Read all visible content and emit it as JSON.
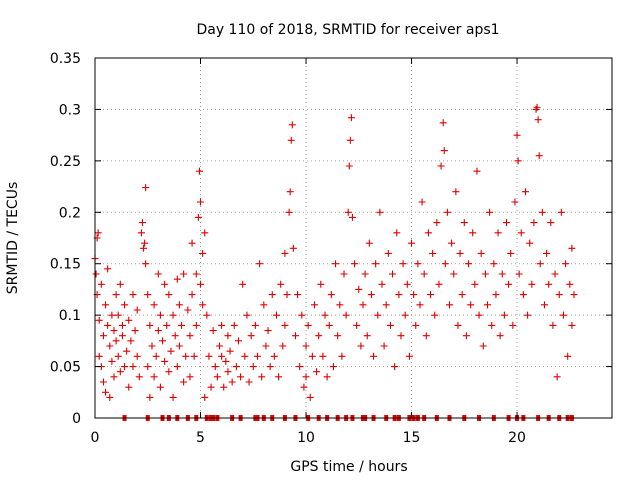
{
  "chart_data": {
    "type": "scatter",
    "title": "Day 110 of 2018, SRMTID for receiver aps1",
    "xlabel": "GPS time / hours",
    "ylabel": "SRMTID / TECUs",
    "xlim": [
      0,
      24.5
    ],
    "ylim": [
      0,
      0.35
    ],
    "xticks": [
      0,
      5,
      10,
      15,
      20
    ],
    "yticks": [
      0,
      0.05,
      0.1,
      0.15,
      0.2,
      0.25,
      0.3,
      0.35
    ],
    "xtick_labels": [
      "0",
      "5",
      "10",
      "15",
      "20"
    ],
    "ytick_labels": [
      "0",
      "0.05",
      "0.1",
      "0.15",
      "0.2",
      "0.25",
      "0.3",
      "0.35"
    ],
    "grid": true,
    "marker": "plus",
    "color": "#e00000",
    "series": [
      {
        "name": "SRMTID",
        "points": [
          [
            0.0,
            0.155
          ],
          [
            0.05,
            0.14
          ],
          [
            0.1,
            0.12
          ],
          [
            0.1,
            0.175
          ],
          [
            0.15,
            0.18
          ],
          [
            0.2,
            0.095
          ],
          [
            0.2,
            0.06
          ],
          [
            0.3,
            0.13
          ],
          [
            0.3,
            0.05
          ],
          [
            0.4,
            0.08
          ],
          [
            0.4,
            0.035
          ],
          [
            0.5,
            0.11
          ],
          [
            0.5,
            0.025
          ],
          [
            0.6,
            0.09
          ],
          [
            0.6,
            0.145
          ],
          [
            0.7,
            0.07
          ],
          [
            0.7,
            0.02
          ],
          [
            0.8,
            0.1
          ],
          [
            0.8,
            0.055
          ],
          [
            0.9,
            0.085
          ],
          [
            0.9,
            0.04
          ],
          [
            1.0,
            0.12
          ],
          [
            1.0,
            0.075
          ],
          [
            1.1,
            0.06
          ],
          [
            1.1,
            0.1
          ],
          [
            1.2,
            0.13
          ],
          [
            1.2,
            0.045
          ],
          [
            1.3,
            0.09
          ],
          [
            1.3,
            0.08
          ],
          [
            1.4,
            0.11
          ],
          [
            1.4,
            0.05
          ],
          [
            1.5,
            0.065
          ],
          [
            1.6,
            0.095
          ],
          [
            1.6,
            0.03
          ],
          [
            1.7,
            0.075
          ],
          [
            1.8,
            0.05
          ],
          [
            1.8,
            0.12
          ],
          [
            1.9,
            0.085
          ],
          [
            2.0,
            0.06
          ],
          [
            2.0,
            0.105
          ],
          [
            2.1,
            0.04
          ],
          [
            2.2,
            0.18
          ],
          [
            2.25,
            0.19
          ],
          [
            2.3,
            0.165
          ],
          [
            2.35,
            0.17
          ],
          [
            2.4,
            0.224
          ],
          [
            2.4,
            0.15
          ],
          [
            2.5,
            0.12
          ],
          [
            2.5,
            0.05
          ],
          [
            2.6,
            0.09
          ],
          [
            2.6,
            0.02
          ],
          [
            2.7,
            0.07
          ],
          [
            2.8,
            0.11
          ],
          [
            2.8,
            0.04
          ],
          [
            2.9,
            0.06
          ],
          [
            3.0,
            0.14
          ],
          [
            3.0,
            0.085
          ],
          [
            3.1,
            0.1
          ],
          [
            3.1,
            0.03
          ],
          [
            3.2,
            0.075
          ],
          [
            3.3,
            0.13
          ],
          [
            3.3,
            0.055
          ],
          [
            3.4,
            0.09
          ],
          [
            3.5,
            0.12
          ],
          [
            3.5,
            0.045
          ],
          [
            3.6,
            0.065
          ],
          [
            3.7,
            0.1
          ],
          [
            3.7,
            0.02
          ],
          [
            3.8,
            0.08
          ],
          [
            3.9,
            0.135
          ],
          [
            3.9,
            0.05
          ],
          [
            4.0,
            0.11
          ],
          [
            4.0,
            0.07
          ],
          [
            4.1,
            0.09
          ],
          [
            4.2,
            0.14
          ],
          [
            4.2,
            0.035
          ],
          [
            4.3,
            0.06
          ],
          [
            4.4,
            0.105
          ],
          [
            4.5,
            0.08
          ],
          [
            4.5,
            0.04
          ],
          [
            4.6,
            0.17
          ],
          [
            4.6,
            0.12
          ],
          [
            4.7,
            0.06
          ],
          [
            4.8,
            0.14
          ],
          [
            4.8,
            0.09
          ],
          [
            4.9,
            0.195
          ],
          [
            4.95,
            0.24
          ],
          [
            5.0,
            0.21
          ],
          [
            5.0,
            0.13
          ],
          [
            5.1,
            0.16
          ],
          [
            5.1,
            0.11
          ],
          [
            5.2,
            0.18
          ],
          [
            5.2,
            0.02
          ],
          [
            5.3,
            0.1
          ],
          [
            5.4,
            0.06
          ],
          [
            5.5,
            0.03
          ],
          [
            5.6,
            0.085
          ],
          [
            5.7,
            0.05
          ],
          [
            5.8,
            0.04
          ],
          [
            5.9,
            0.07
          ],
          [
            6.0,
            0.06
          ],
          [
            6.0,
            0.09
          ],
          [
            6.1,
            0.03
          ],
          [
            6.2,
            0.055
          ],
          [
            6.3,
            0.08
          ],
          [
            6.3,
            0.045
          ],
          [
            6.4,
            0.065
          ],
          [
            6.5,
            0.035
          ],
          [
            6.6,
            0.09
          ],
          [
            6.7,
            0.05
          ],
          [
            6.8,
            0.075
          ],
          [
            6.9,
            0.04
          ],
          [
            7.0,
            0.13
          ],
          [
            7.1,
            0.06
          ],
          [
            7.2,
            0.1
          ],
          [
            7.3,
            0.035
          ],
          [
            7.4,
            0.08
          ],
          [
            7.5,
            0.05
          ],
          [
            7.6,
            0.09
          ],
          [
            7.7,
            0.06
          ],
          [
            7.8,
            0.15
          ],
          [
            7.9,
            0.04
          ],
          [
            8.0,
            0.11
          ],
          [
            8.1,
            0.07
          ],
          [
            8.2,
            0.085
          ],
          [
            8.3,
            0.05
          ],
          [
            8.4,
            0.12
          ],
          [
            8.5,
            0.06
          ],
          [
            8.6,
            0.1
          ],
          [
            8.7,
            0.04
          ],
          [
            8.8,
            0.13
          ],
          [
            8.9,
            0.07
          ],
          [
            9.0,
            0.16
          ],
          [
            9.0,
            0.09
          ],
          [
            9.1,
            0.12
          ],
          [
            9.2,
            0.2
          ],
          [
            9.25,
            0.22
          ],
          [
            9.3,
            0.27
          ],
          [
            9.35,
            0.285
          ],
          [
            9.4,
            0.165
          ],
          [
            9.5,
            0.08
          ],
          [
            9.6,
            0.12
          ],
          [
            9.7,
            0.05
          ],
          [
            9.8,
            0.1
          ],
          [
            9.9,
            0.03
          ],
          [
            10.0,
            0.07
          ],
          [
            10.0,
            0.04
          ],
          [
            10.1,
            0.09
          ],
          [
            10.2,
            0.02
          ],
          [
            10.3,
            0.06
          ],
          [
            10.4,
            0.11
          ],
          [
            10.5,
            0.045
          ],
          [
            10.6,
            0.08
          ],
          [
            10.7,
            0.13
          ],
          [
            10.8,
            0.06
          ],
          [
            10.9,
            0.1
          ],
          [
            11.0,
            0.04
          ],
          [
            11.1,
            0.09
          ],
          [
            11.2,
            0.12
          ],
          [
            11.3,
            0.05
          ],
          [
            11.4,
            0.15
          ],
          [
            11.5,
            0.08
          ],
          [
            11.6,
            0.11
          ],
          [
            11.7,
            0.06
          ],
          [
            11.8,
            0.14
          ],
          [
            11.9,
            0.1
          ],
          [
            12.0,
            0.2
          ],
          [
            12.05,
            0.245
          ],
          [
            12.1,
            0.27
          ],
          [
            12.15,
            0.292
          ],
          [
            12.2,
            0.195
          ],
          [
            12.3,
            0.15
          ],
          [
            12.4,
            0.09
          ],
          [
            12.5,
            0.125
          ],
          [
            12.6,
            0.07
          ],
          [
            12.7,
            0.11
          ],
          [
            12.8,
            0.14
          ],
          [
            12.9,
            0.08
          ],
          [
            13.0,
            0.17
          ],
          [
            13.1,
            0.12
          ],
          [
            13.2,
            0.06
          ],
          [
            13.3,
            0.15
          ],
          [
            13.4,
            0.1
          ],
          [
            13.5,
            0.2
          ],
          [
            13.6,
            0.13
          ],
          [
            13.7,
            0.07
          ],
          [
            13.8,
            0.11
          ],
          [
            13.9,
            0.16
          ],
          [
            14.0,
            0.09
          ],
          [
            14.1,
            0.14
          ],
          [
            14.2,
            0.05
          ],
          [
            14.3,
            0.18
          ],
          [
            14.4,
            0.12
          ],
          [
            14.5,
            0.08
          ],
          [
            14.6,
            0.15
          ],
          [
            14.7,
            0.1
          ],
          [
            14.8,
            0.13
          ],
          [
            14.9,
            0.06
          ],
          [
            15.0,
            0.17
          ],
          [
            15.1,
            0.12
          ],
          [
            15.2,
            0.09
          ],
          [
            15.3,
            0.15
          ],
          [
            15.4,
            0.11
          ],
          [
            15.5,
            0.21
          ],
          [
            15.6,
            0.14
          ],
          [
            15.7,
            0.08
          ],
          [
            15.8,
            0.18
          ],
          [
            15.9,
            0.12
          ],
          [
            16.0,
            0.16
          ],
          [
            16.1,
            0.1
          ],
          [
            16.2,
            0.19
          ],
          [
            16.3,
            0.13
          ],
          [
            16.4,
            0.245
          ],
          [
            16.5,
            0.287
          ],
          [
            16.55,
            0.26
          ],
          [
            16.6,
            0.15
          ],
          [
            16.7,
            0.2
          ],
          [
            16.8,
            0.11
          ],
          [
            16.9,
            0.17
          ],
          [
            17.0,
            0.14
          ],
          [
            17.1,
            0.22
          ],
          [
            17.2,
            0.09
          ],
          [
            17.3,
            0.16
          ],
          [
            17.4,
            0.12
          ],
          [
            17.5,
            0.19
          ],
          [
            17.6,
            0.08
          ],
          [
            17.7,
            0.15
          ],
          [
            17.8,
            0.11
          ],
          [
            17.9,
            0.18
          ],
          [
            18.0,
            0.13
          ],
          [
            18.1,
            0.24
          ],
          [
            18.2,
            0.1
          ],
          [
            18.3,
            0.16
          ],
          [
            18.4,
            0.07
          ],
          [
            18.5,
            0.14
          ],
          [
            18.6,
            0.11
          ],
          [
            18.7,
            0.2
          ],
          [
            18.8,
            0.09
          ],
          [
            18.9,
            0.15
          ],
          [
            19.0,
            0.12
          ],
          [
            19.1,
            0.18
          ],
          [
            19.2,
            0.08
          ],
          [
            19.3,
            0.14
          ],
          [
            19.4,
            0.1
          ],
          [
            19.5,
            0.19
          ],
          [
            19.6,
            0.13
          ],
          [
            19.7,
            0.16
          ],
          [
            19.8,
            0.09
          ],
          [
            19.9,
            0.21
          ],
          [
            20.0,
            0.275
          ],
          [
            20.05,
            0.25
          ],
          [
            20.1,
            0.14
          ],
          [
            20.2,
            0.18
          ],
          [
            20.3,
            0.12
          ],
          [
            20.4,
            0.22
          ],
          [
            20.5,
            0.1
          ],
          [
            20.6,
            0.17
          ],
          [
            20.7,
            0.13
          ],
          [
            20.8,
            0.19
          ],
          [
            20.9,
            0.3
          ],
          [
            20.95,
            0.302
          ],
          [
            21.0,
            0.29
          ],
          [
            21.05,
            0.255
          ],
          [
            21.1,
            0.15
          ],
          [
            21.2,
            0.2
          ],
          [
            21.3,
            0.11
          ],
          [
            21.4,
            0.16
          ],
          [
            21.5,
            0.13
          ],
          [
            21.6,
            0.19
          ],
          [
            21.7,
            0.09
          ],
          [
            21.8,
            0.14
          ],
          [
            21.9,
            0.04
          ],
          [
            22.0,
            0.12
          ],
          [
            22.1,
            0.2
          ],
          [
            22.2,
            0.1
          ],
          [
            22.3,
            0.15
          ],
          [
            22.4,
            0.06
          ],
          [
            22.5,
            0.13
          ],
          [
            22.6,
            0.165
          ],
          [
            22.6,
            0.09
          ],
          [
            22.7,
            0.12
          ]
        ],
        "zero_points": [
          1.4,
          2.5,
          3.2,
          3.5,
          3.9,
          4.4,
          4.8,
          5.3,
          5.5,
          5.6,
          5.8,
          6.5,
          6.9,
          7.6,
          7.7,
          8.0,
          8.4,
          9.0,
          9.5,
          10.1,
          10.6,
          11.0,
          11.5,
          11.9,
          12.2,
          12.7,
          12.8,
          13.2,
          13.8,
          14.2,
          14.4,
          14.9,
          15.1,
          15.3,
          15.6,
          16.2,
          16.8,
          17.5,
          18.2,
          18.9,
          19.6,
          20.0,
          20.3,
          21.0,
          21.5,
          22.0,
          22.4,
          22.6
        ]
      }
    ]
  }
}
